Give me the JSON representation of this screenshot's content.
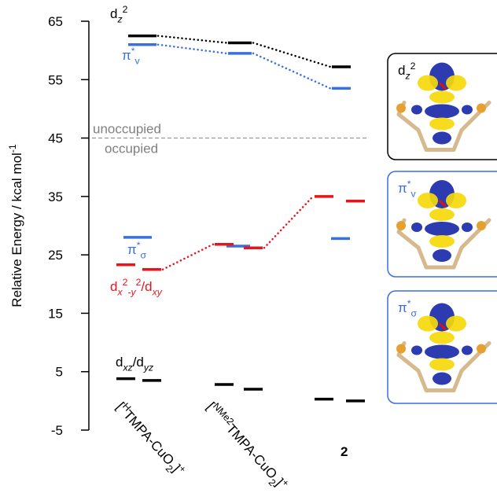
{
  "chart_data": {
    "type": "energy-level",
    "y_label": [
      {
        "text": "Relative Energy / kcal mol"
      },
      {
        "text": "-1",
        "sup": true
      }
    ],
    "ylim": [
      -5,
      65
    ],
    "yticks": [
      -5,
      5,
      15,
      25,
      35,
      45,
      55,
      65
    ],
    "categories": [
      [
        {
          "text": "["
        },
        {
          "text": "H",
          "sup": true
        },
        {
          "text": "TMPA-CuO"
        },
        {
          "text": "2",
          "sub": true
        },
        {
          "text": "]"
        },
        {
          "text": "+",
          "sup": true
        }
      ],
      [
        {
          "text": "["
        },
        {
          "text": "NMe2",
          "sup": true
        },
        {
          "text": "TMPA-CuO"
        },
        {
          "text": "2",
          "sub": true
        },
        {
          "text": "]"
        },
        {
          "text": "+",
          "sup": true
        }
      ],
      [
        {
          "text": "2",
          "bold": true
        }
      ]
    ],
    "divider": {
      "value": 45,
      "above": "unoccupied",
      "below": "occupied",
      "color": "#808080"
    },
    "series": [
      {
        "name": [
          {
            "text": "d"
          },
          {
            "text": "z",
            "sub": true,
            "italic": true
          },
          {
            "text": "2",
            "sup": true
          }
        ],
        "color": "#000000",
        "values": [
          62.5,
          61.3,
          57.2
        ],
        "connect": true
      },
      {
        "name": [
          {
            "text": "π"
          },
          {
            "text": "*",
            "sup": true
          },
          {
            "text": "v",
            "sub": true
          }
        ],
        "color": "#3a6fe0",
        "values": [
          61.0,
          59.5,
          53.5
        ],
        "connect": true
      },
      {
        "name": [
          {
            "text": "π"
          },
          {
            "text": "*",
            "sup": true
          },
          {
            "text": "σ",
            "sub": true
          }
        ],
        "color": "#3a6fe0",
        "values": [
          28.0,
          26.5,
          27.8
        ],
        "connect": false
      },
      {
        "name": [
          {
            "text": "d"
          },
          {
            "text": "x",
            "sub": true,
            "italic": true
          },
          {
            "text": "2",
            "sup": true
          },
          {
            "text": "-y",
            "sub": true,
            "italic": true
          },
          {
            "text": "2",
            "sup": true
          },
          {
            "text": "/d"
          },
          {
            "text": "xy",
            "sub": true,
            "italic": true
          }
        ],
        "color": "#e8141c",
        "values": [
          [
            23.3,
            22.5
          ],
          [
            26.8,
            26.2
          ],
          [
            35.0,
            34.2
          ]
        ],
        "connect": true
      },
      {
        "name": [
          {
            "text": "d"
          },
          {
            "text": "xz",
            "sub": true,
            "italic": true
          },
          {
            "text": "/d"
          },
          {
            "text": "yz",
            "sub": true,
            "italic": true
          }
        ],
        "color": "#000000",
        "values": [
          [
            3.8,
            3.5
          ],
          [
            2.8,
            2.0
          ],
          [
            0.3,
            0.0
          ]
        ],
        "connect": false
      }
    ],
    "insets": [
      {
        "label": [
          {
            "text": "d"
          },
          {
            "text": "z",
            "sub": true,
            "italic": true
          },
          {
            "text": "2",
            "sup": true
          }
        ],
        "border": "#000000",
        "label_color": "#000000"
      },
      {
        "label": [
          {
            "text": "π"
          },
          {
            "text": "*",
            "sup": true
          },
          {
            "text": "v",
            "sub": true
          }
        ],
        "border": "#3a6fe0",
        "label_color": "#3a6fe0"
      },
      {
        "label": [
          {
            "text": "π"
          },
          {
            "text": "*",
            "sup": true
          },
          {
            "text": "σ",
            "sub": true
          }
        ],
        "border": "#3a6fe0",
        "label_color": "#3a6fe0"
      }
    ]
  }
}
